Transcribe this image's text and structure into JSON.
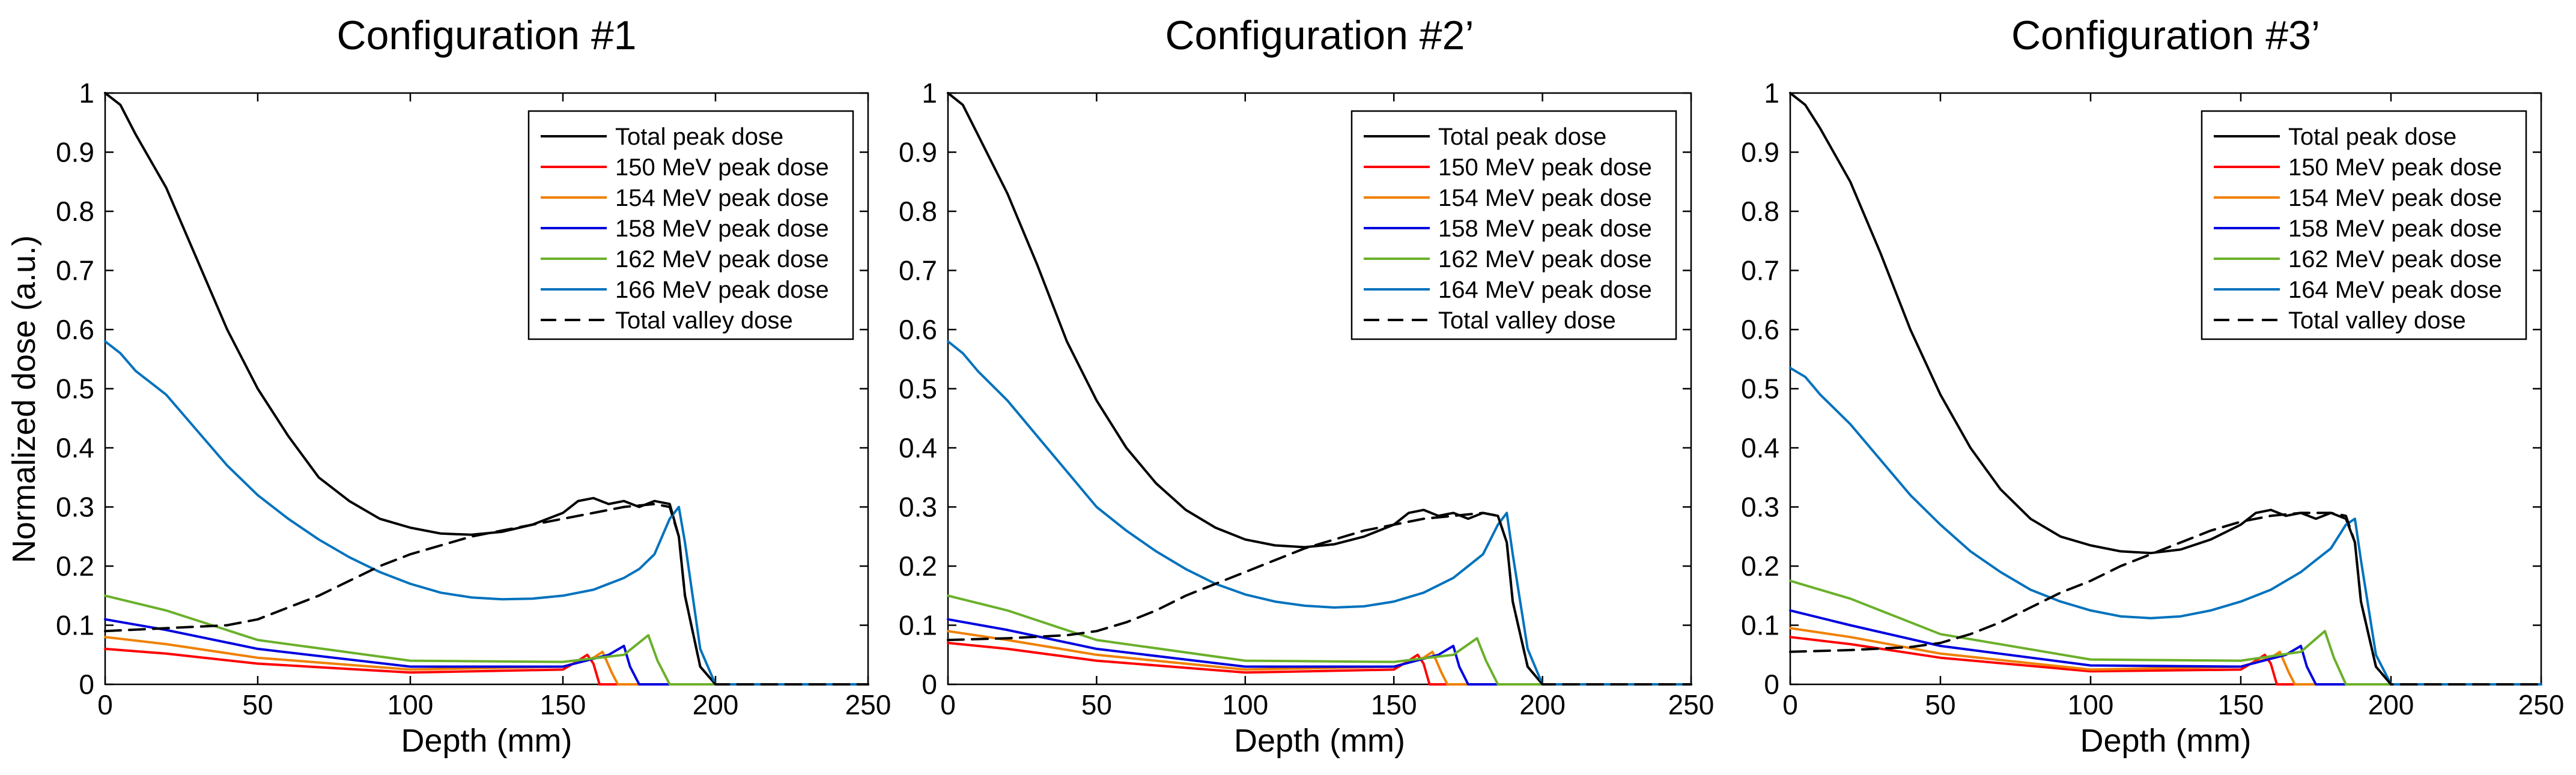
{
  "figure": {
    "ylabel_shared": "Normalized dose (a.u.)"
  },
  "colors": {
    "total_peak": "#000000",
    "mev150": "#ff0000",
    "mev154": "#f08000",
    "mev158": "#0000e0",
    "mev162": "#6ab02a",
    "mev166": "#0072bd",
    "valley": "#000000"
  },
  "chart_data": [
    {
      "type": "line",
      "title": "Configuration #1",
      "xlabel": "Depth (mm)",
      "ylabel": "Normalized dose (a.u.)",
      "xlim": [
        0,
        250
      ],
      "ylim": [
        0,
        1
      ],
      "xticks": [
        0,
        50,
        100,
        150,
        200,
        250
      ],
      "yticks": [
        0,
        0.1,
        0.2,
        0.3,
        0.4,
        0.5,
        0.6,
        0.7,
        0.8,
        0.9,
        1
      ],
      "legend_position": "top-right",
      "series": [
        {
          "name": "Total peak dose",
          "color": "#000000",
          "style": "solid",
          "x": [
            0,
            5,
            10,
            20,
            30,
            40,
            50,
            60,
            70,
            80,
            90,
            100,
            110,
            120,
            130,
            140,
            150,
            155,
            160,
            165,
            170,
            175,
            180,
            185,
            188,
            190,
            195,
            200,
            210,
            250
          ],
          "y": [
            1.0,
            0.98,
            0.93,
            0.84,
            0.72,
            0.6,
            0.5,
            0.42,
            0.35,
            0.31,
            0.28,
            0.265,
            0.255,
            0.253,
            0.258,
            0.27,
            0.29,
            0.31,
            0.315,
            0.305,
            0.31,
            0.3,
            0.31,
            0.305,
            0.25,
            0.15,
            0.03,
            0.0,
            0.0,
            0.0
          ]
        },
        {
          "name": "150 MeV peak dose",
          "color": "#ff0000",
          "style": "solid",
          "x": [
            0,
            20,
            50,
            100,
            150,
            155,
            158,
            160,
            162,
            250
          ],
          "y": [
            0.06,
            0.052,
            0.035,
            0.02,
            0.025,
            0.04,
            0.05,
            0.035,
            0.0,
            0.0
          ]
        },
        {
          "name": "154 MeV peak dose",
          "color": "#f08000",
          "style": "solid",
          "x": [
            0,
            20,
            50,
            100,
            150,
            160,
            163,
            166,
            168,
            250
          ],
          "y": [
            0.08,
            0.068,
            0.045,
            0.025,
            0.03,
            0.045,
            0.055,
            0.02,
            0.0,
            0.0
          ]
        },
        {
          "name": "158 MeV peak dose",
          "color": "#0000e0",
          "style": "solid",
          "x": [
            0,
            20,
            50,
            100,
            150,
            165,
            170,
            172,
            175,
            250
          ],
          "y": [
            0.11,
            0.092,
            0.06,
            0.03,
            0.03,
            0.05,
            0.065,
            0.03,
            0.0,
            0.0
          ]
        },
        {
          "name": "162 MeV peak dose",
          "color": "#6ab02a",
          "style": "solid",
          "x": [
            0,
            20,
            50,
            100,
            150,
            170,
            178,
            181,
            185,
            250
          ],
          "y": [
            0.15,
            0.125,
            0.075,
            0.04,
            0.038,
            0.05,
            0.083,
            0.04,
            0.0,
            0.0
          ]
        },
        {
          "name": "166 MeV peak dose",
          "color": "#0072bd",
          "style": "solid",
          "x": [
            0,
            5,
            10,
            20,
            30,
            40,
            50,
            60,
            70,
            80,
            90,
            100,
            110,
            120,
            130,
            140,
            150,
            160,
            170,
            175,
            180,
            185,
            188,
            190,
            195,
            200,
            210,
            250
          ],
          "y": [
            0.58,
            0.56,
            0.53,
            0.49,
            0.43,
            0.37,
            0.32,
            0.28,
            0.245,
            0.215,
            0.19,
            0.17,
            0.155,
            0.147,
            0.144,
            0.145,
            0.15,
            0.16,
            0.18,
            0.195,
            0.22,
            0.28,
            0.3,
            0.24,
            0.06,
            0.0,
            0.0,
            0.0
          ]
        },
        {
          "name": "Total valley dose",
          "color": "#000000",
          "style": "dashed",
          "x": [
            0,
            20,
            40,
            50,
            60,
            70,
            80,
            90,
            100,
            110,
            120,
            130,
            140,
            150,
            160,
            170,
            180,
            185,
            188,
            190,
            195,
            200,
            210,
            250
          ],
          "y": [
            0.09,
            0.095,
            0.1,
            0.11,
            0.13,
            0.15,
            0.175,
            0.2,
            0.22,
            0.235,
            0.25,
            0.26,
            0.27,
            0.28,
            0.29,
            0.3,
            0.305,
            0.3,
            0.25,
            0.15,
            0.03,
            0.0,
            0.0,
            0.0
          ]
        }
      ]
    },
    {
      "type": "line",
      "title": "Configuration #2’",
      "xlabel": "Depth (mm)",
      "ylabel": "",
      "xlim": [
        0,
        250
      ],
      "ylim": [
        0,
        1
      ],
      "xticks": [
        0,
        50,
        100,
        150,
        200,
        250
      ],
      "yticks": [
        0,
        0.1,
        0.2,
        0.3,
        0.4,
        0.5,
        0.6,
        0.7,
        0.8,
        0.9,
        1
      ],
      "legend_position": "top-right",
      "series": [
        {
          "name": "Total peak dose",
          "color": "#000000",
          "style": "solid",
          "x": [
            0,
            5,
            10,
            20,
            30,
            40,
            50,
            60,
            70,
            80,
            90,
            100,
            110,
            120,
            130,
            140,
            150,
            155,
            160,
            165,
            170,
            175,
            180,
            185,
            188,
            190,
            195,
            200,
            210,
            250
          ],
          "y": [
            1.0,
            0.98,
            0.93,
            0.83,
            0.71,
            0.58,
            0.48,
            0.4,
            0.34,
            0.295,
            0.265,
            0.245,
            0.235,
            0.232,
            0.237,
            0.25,
            0.27,
            0.29,
            0.295,
            0.285,
            0.29,
            0.28,
            0.29,
            0.285,
            0.24,
            0.14,
            0.03,
            0.0,
            0.0,
            0.0
          ]
        },
        {
          "name": "150 MeV peak dose",
          "color": "#ff0000",
          "style": "solid",
          "x": [
            0,
            20,
            50,
            100,
            150,
            155,
            158,
            160,
            162,
            250
          ],
          "y": [
            0.07,
            0.06,
            0.04,
            0.02,
            0.025,
            0.04,
            0.05,
            0.035,
            0.0,
            0.0
          ]
        },
        {
          "name": "154 MeV peak dose",
          "color": "#f08000",
          "style": "solid",
          "x": [
            0,
            20,
            50,
            100,
            150,
            160,
            163,
            166,
            168,
            250
          ],
          "y": [
            0.09,
            0.075,
            0.05,
            0.025,
            0.03,
            0.045,
            0.055,
            0.02,
            0.0,
            0.0
          ]
        },
        {
          "name": "158 MeV peak dose",
          "color": "#0000e0",
          "style": "solid",
          "x": [
            0,
            20,
            50,
            100,
            150,
            165,
            170,
            172,
            175,
            250
          ],
          "y": [
            0.11,
            0.092,
            0.06,
            0.03,
            0.03,
            0.05,
            0.065,
            0.03,
            0.0,
            0.0
          ]
        },
        {
          "name": "162 MeV peak dose",
          "color": "#6ab02a",
          "style": "solid",
          "x": [
            0,
            20,
            50,
            100,
            150,
            170,
            178,
            181,
            185,
            250
          ],
          "y": [
            0.15,
            0.125,
            0.075,
            0.04,
            0.038,
            0.05,
            0.078,
            0.04,
            0.0,
            0.0
          ]
        },
        {
          "name": "164 MeV peak dose",
          "color": "#0072bd",
          "style": "solid",
          "x": [
            0,
            5,
            10,
            20,
            30,
            40,
            50,
            60,
            70,
            80,
            90,
            100,
            110,
            120,
            130,
            140,
            150,
            160,
            170,
            175,
            180,
            185,
            188,
            190,
            195,
            200,
            210,
            250
          ],
          "y": [
            0.58,
            0.56,
            0.53,
            0.48,
            0.42,
            0.36,
            0.3,
            0.26,
            0.225,
            0.195,
            0.17,
            0.152,
            0.14,
            0.133,
            0.13,
            0.132,
            0.14,
            0.155,
            0.18,
            0.2,
            0.22,
            0.27,
            0.29,
            0.22,
            0.06,
            0.0,
            0.0,
            0.0
          ]
        },
        {
          "name": "Total valley dose",
          "color": "#000000",
          "style": "dashed",
          "x": [
            0,
            20,
            40,
            50,
            60,
            70,
            80,
            90,
            100,
            110,
            120,
            130,
            140,
            150,
            160,
            170,
            180,
            185,
            188,
            190,
            195,
            200,
            210,
            250
          ],
          "y": [
            0.075,
            0.078,
            0.083,
            0.09,
            0.105,
            0.125,
            0.15,
            0.17,
            0.19,
            0.21,
            0.23,
            0.245,
            0.26,
            0.27,
            0.28,
            0.285,
            0.29,
            0.285,
            0.24,
            0.14,
            0.03,
            0.0,
            0.0,
            0.0
          ]
        }
      ]
    },
    {
      "type": "line",
      "title": "Configuration #3’",
      "xlabel": "Depth (mm)",
      "ylabel": "",
      "xlim": [
        0,
        250
      ],
      "ylim": [
        0,
        1
      ],
      "xticks": [
        0,
        50,
        100,
        150,
        200,
        250
      ],
      "yticks": [
        0,
        0.1,
        0.2,
        0.3,
        0.4,
        0.5,
        0.6,
        0.7,
        0.8,
        0.9,
        1
      ],
      "legend_position": "top-right",
      "series": [
        {
          "name": "Total peak dose",
          "color": "#000000",
          "style": "solid",
          "x": [
            0,
            5,
            10,
            20,
            30,
            40,
            50,
            60,
            70,
            80,
            90,
            100,
            110,
            120,
            130,
            140,
            150,
            155,
            160,
            165,
            170,
            175,
            180,
            185,
            188,
            190,
            195,
            200,
            210,
            250
          ],
          "y": [
            1.0,
            0.98,
            0.94,
            0.85,
            0.73,
            0.6,
            0.49,
            0.4,
            0.33,
            0.28,
            0.25,
            0.235,
            0.225,
            0.222,
            0.228,
            0.245,
            0.27,
            0.29,
            0.295,
            0.285,
            0.29,
            0.28,
            0.29,
            0.28,
            0.24,
            0.14,
            0.03,
            0.0,
            0.0,
            0.0
          ]
        },
        {
          "name": "150 MeV peak dose",
          "color": "#ff0000",
          "style": "solid",
          "x": [
            0,
            20,
            50,
            100,
            150,
            155,
            158,
            160,
            162,
            250
          ],
          "y": [
            0.08,
            0.068,
            0.045,
            0.022,
            0.025,
            0.04,
            0.05,
            0.035,
            0.0,
            0.0
          ]
        },
        {
          "name": "154 MeV peak dose",
          "color": "#f08000",
          "style": "solid",
          "x": [
            0,
            20,
            50,
            100,
            150,
            160,
            163,
            166,
            168,
            250
          ],
          "y": [
            0.095,
            0.08,
            0.052,
            0.025,
            0.03,
            0.045,
            0.055,
            0.02,
            0.0,
            0.0
          ]
        },
        {
          "name": "158 MeV peak dose",
          "color": "#0000e0",
          "style": "solid",
          "x": [
            0,
            20,
            50,
            100,
            150,
            165,
            170,
            172,
            175,
            250
          ],
          "y": [
            0.125,
            0.1,
            0.065,
            0.032,
            0.03,
            0.05,
            0.065,
            0.03,
            0.0,
            0.0
          ]
        },
        {
          "name": "162 MeV peak dose",
          "color": "#6ab02a",
          "style": "solid",
          "x": [
            0,
            20,
            50,
            100,
            150,
            170,
            178,
            181,
            185,
            250
          ],
          "y": [
            0.175,
            0.145,
            0.085,
            0.042,
            0.04,
            0.055,
            0.09,
            0.045,
            0.0,
            0.0
          ]
        },
        {
          "name": "164 MeV peak dose",
          "color": "#0072bd",
          "style": "solid",
          "x": [
            0,
            5,
            10,
            20,
            30,
            40,
            50,
            60,
            70,
            80,
            90,
            100,
            110,
            120,
            130,
            140,
            150,
            160,
            170,
            175,
            180,
            185,
            188,
            190,
            195,
            200,
            210,
            250
          ],
          "y": [
            0.535,
            0.52,
            0.49,
            0.44,
            0.38,
            0.32,
            0.27,
            0.225,
            0.19,
            0.16,
            0.14,
            0.125,
            0.115,
            0.112,
            0.115,
            0.125,
            0.14,
            0.16,
            0.19,
            0.21,
            0.23,
            0.27,
            0.28,
            0.21,
            0.05,
            0.0,
            0.0,
            0.0
          ]
        },
        {
          "name": "Total valley dose",
          "color": "#000000",
          "style": "dashed",
          "x": [
            0,
            20,
            40,
            50,
            60,
            70,
            80,
            90,
            100,
            110,
            120,
            130,
            140,
            150,
            160,
            170,
            180,
            185,
            188,
            190,
            195,
            200,
            210,
            250
          ],
          "y": [
            0.055,
            0.058,
            0.063,
            0.07,
            0.085,
            0.105,
            0.13,
            0.155,
            0.175,
            0.2,
            0.22,
            0.24,
            0.26,
            0.275,
            0.285,
            0.29,
            0.29,
            0.285,
            0.24,
            0.14,
            0.03,
            0.0,
            0.0,
            0.0
          ]
        }
      ]
    }
  ]
}
